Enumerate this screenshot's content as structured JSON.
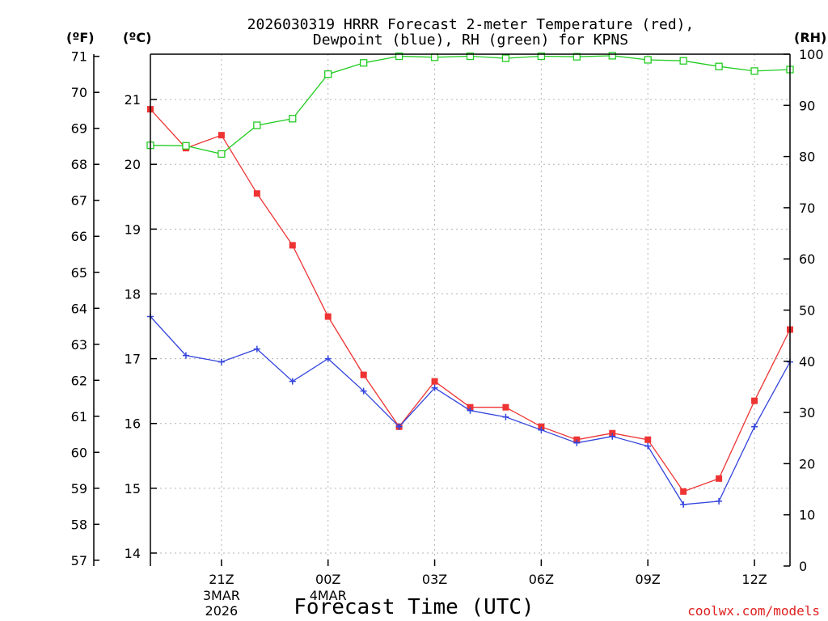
{
  "chart_data": {
    "type": "line",
    "title": {
      "line1": "2026030319 HRRR Forecast 2-meter Temperature (red),",
      "line2": "Dewpoint (blue), RH (green) for KPNS"
    },
    "xlabel": "Forecast Time (UTC)",
    "credit": "coolwx.com/models",
    "units": {
      "fahrenheit": "(ºF)",
      "celsius": "(ºC)",
      "rh": "(RH)"
    },
    "x_hours": [
      0,
      1,
      2,
      3,
      4,
      5,
      6,
      7,
      8,
      9,
      10,
      11,
      12,
      13,
      14,
      15,
      16,
      17,
      18
    ],
    "x_range": [
      0,
      18
    ],
    "x_ticks": [
      {
        "hour": 2,
        "label": "21Z",
        "sub1": "3MAR",
        "sub2": "2026"
      },
      {
        "hour": 5,
        "label": "00Z",
        "sub1": "4MAR",
        "sub2": ""
      },
      {
        "hour": 8,
        "label": "03Z",
        "sub1": "",
        "sub2": ""
      },
      {
        "hour": 11,
        "label": "06Z",
        "sub1": "",
        "sub2": ""
      },
      {
        "hour": 14,
        "label": "09Z",
        "sub1": "",
        "sub2": ""
      },
      {
        "hour": 17,
        "label": "12Z",
        "sub1": "",
        "sub2": ""
      }
    ],
    "y_celsius_range": [
      13.8,
      21.7
    ],
    "y_celsius_ticks": [
      14,
      15,
      16,
      17,
      18,
      19,
      20,
      21
    ],
    "y_fahrenheit_ticks": [
      57,
      58,
      59,
      60,
      61,
      62,
      63,
      64,
      65,
      66,
      67,
      68,
      69,
      70,
      71
    ],
    "y_rh_range": [
      0,
      100
    ],
    "y_rh_ticks": [
      0,
      10,
      20,
      30,
      40,
      50,
      60,
      70,
      80,
      90,
      100
    ],
    "series": [
      {
        "name": "Temperature",
        "axis": "celsius",
        "color": "#ee3333",
        "marker": "filled-square",
        "values": [
          20.85,
          20.25,
          20.45,
          19.55,
          18.75,
          17.65,
          16.75,
          15.95,
          16.65,
          16.25,
          16.25,
          15.95,
          15.75,
          15.85,
          15.75,
          14.95,
          15.15,
          16.35,
          17.45
        ]
      },
      {
        "name": "Dewpoint",
        "axis": "celsius",
        "color": "#3344dd",
        "marker": "plus",
        "values": [
          17.65,
          17.05,
          16.95,
          17.15,
          16.65,
          17.0,
          16.5,
          15.95,
          16.55,
          16.2,
          16.1,
          15.9,
          15.7,
          15.8,
          15.65,
          14.75,
          14.8,
          15.95,
          16.95
        ]
      },
      {
        "name": "RH",
        "axis": "rh",
        "color": "#22cc22",
        "marker": "open-square",
        "values": [
          82.2,
          82.1,
          80.5,
          86.1,
          87.4,
          96.1,
          98.3,
          99.6,
          99.4,
          99.6,
          99.2,
          99.6,
          99.5,
          99.7,
          98.9,
          98.7,
          97.6,
          96.7,
          97.0
        ]
      }
    ]
  }
}
